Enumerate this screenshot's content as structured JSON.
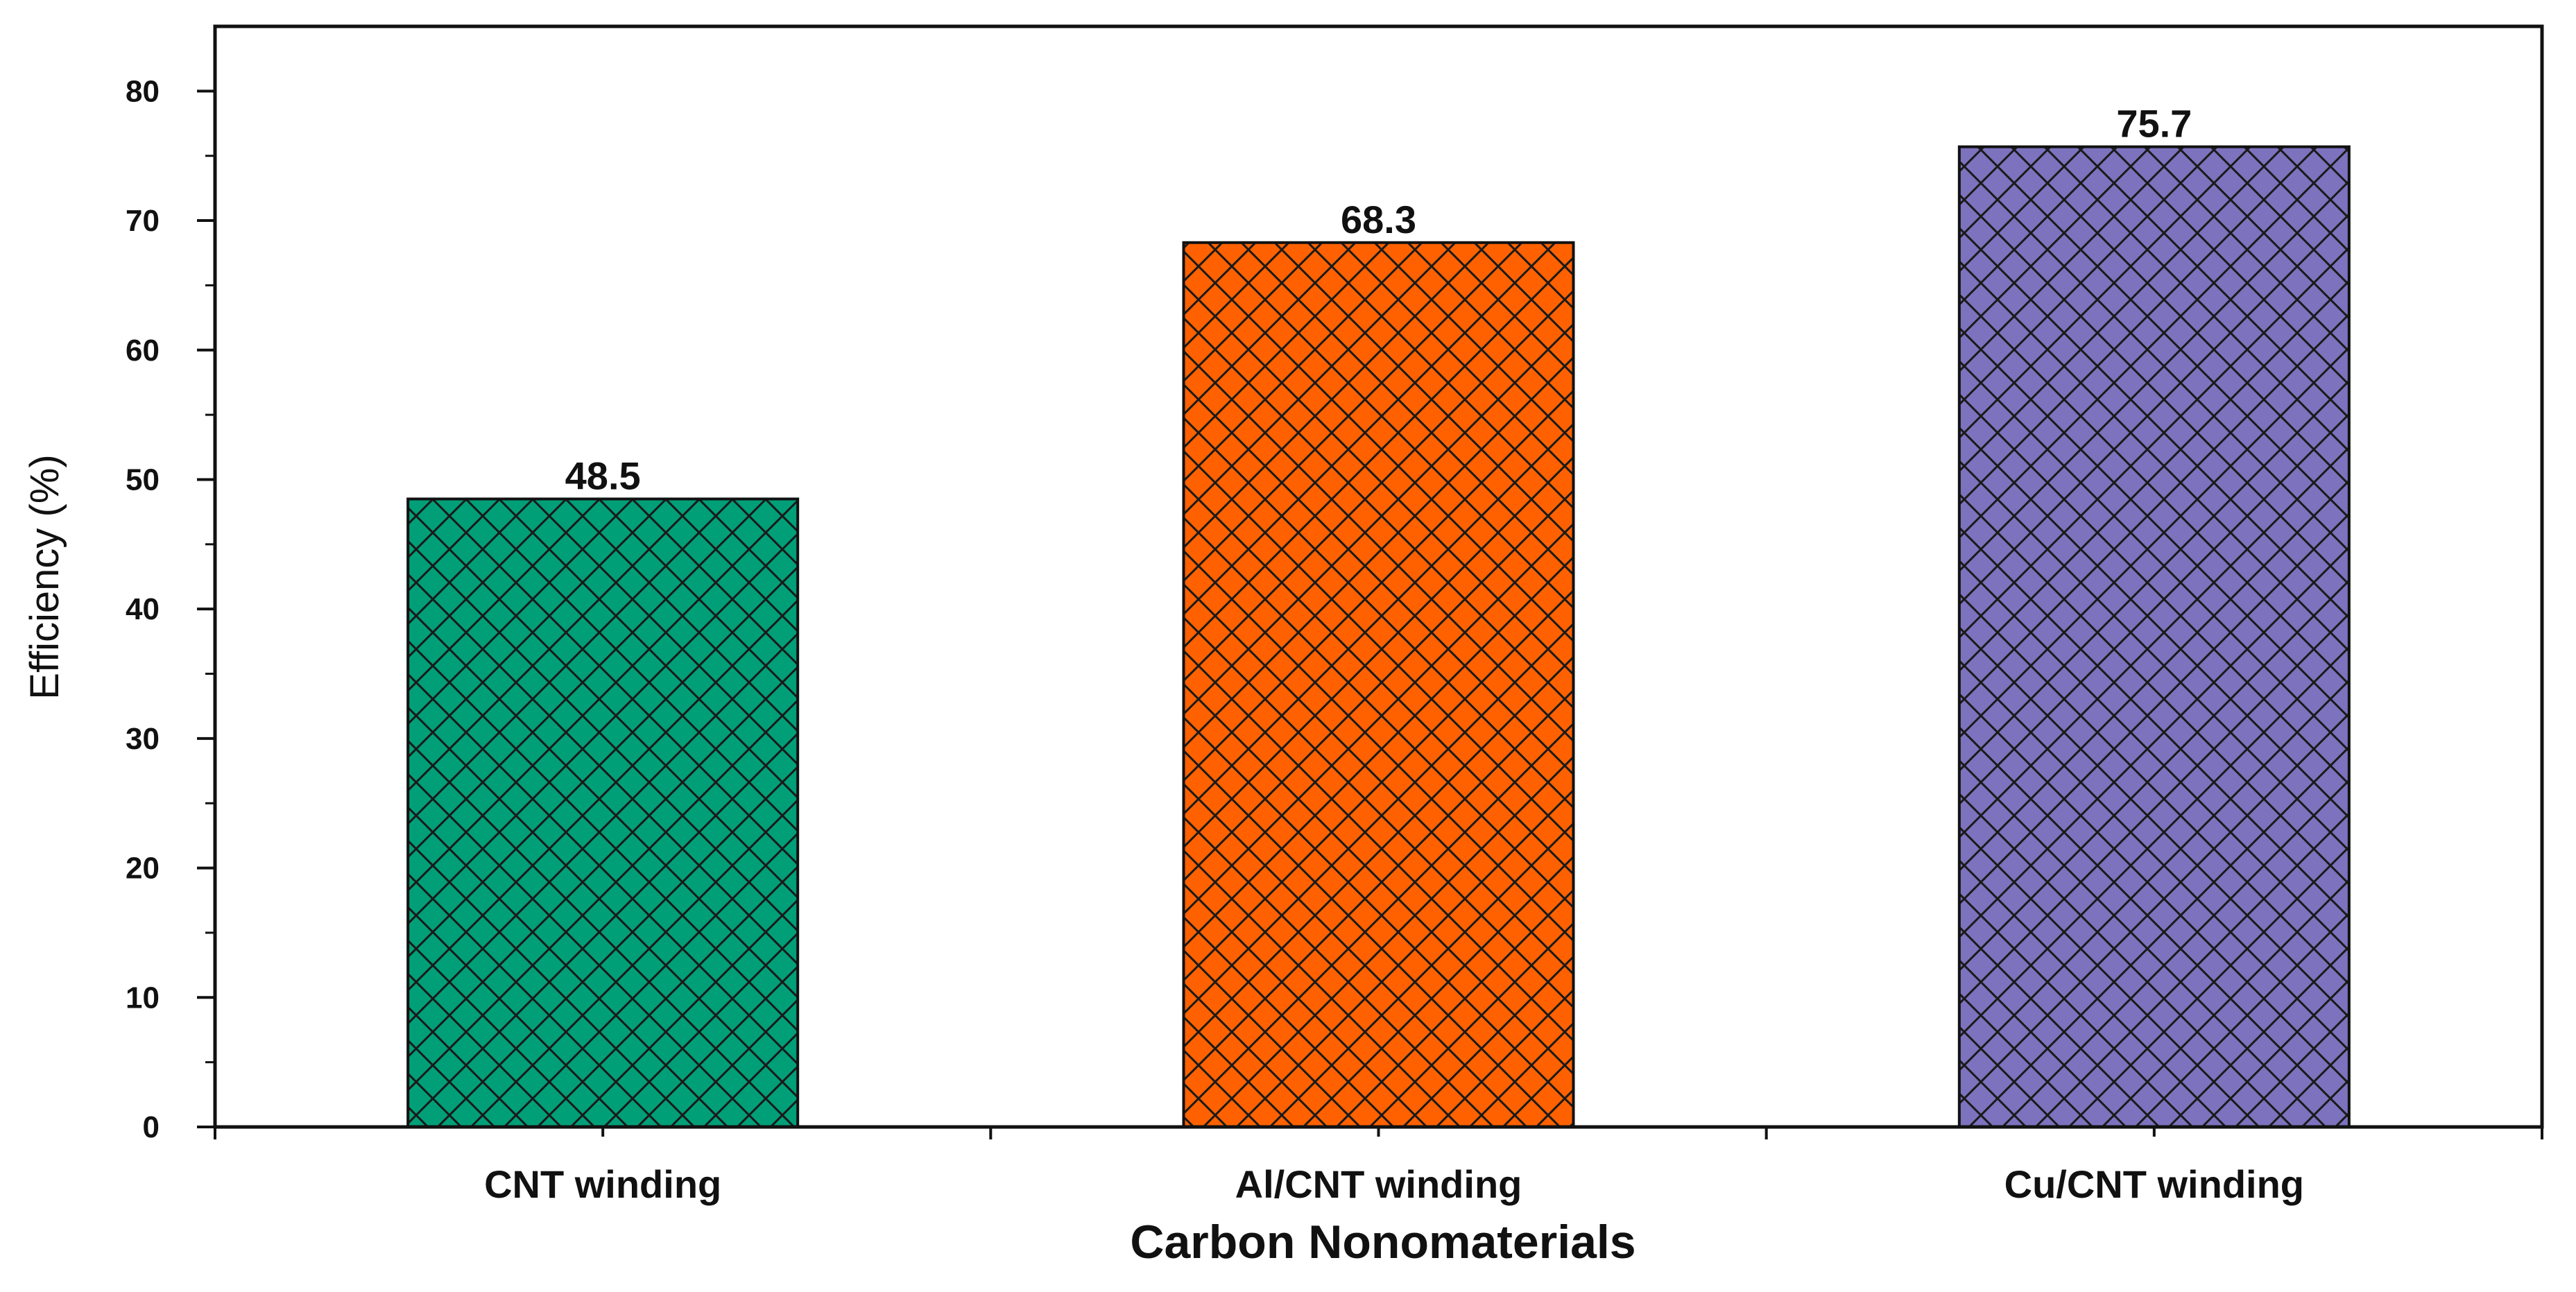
{
  "chart_data": {
    "type": "bar",
    "title": "",
    "xlabel": "Carbon Nonomaterials",
    "ylabel": "Efficiency (%)",
    "categories": [
      "CNT winding",
      "Al/CNT winding",
      "Cu/CNT winding"
    ],
    "values": [
      48.5,
      68.3,
      75.7
    ],
    "value_labels": [
      "48.5",
      "68.3",
      "75.7"
    ],
    "colors": [
      "#019f78",
      "#ff6100",
      "#7c72be"
    ],
    "hatch": "crosshatch",
    "ylim": [
      0,
      85
    ],
    "yticks": [
      0,
      10,
      20,
      30,
      40,
      50,
      60,
      70,
      80
    ],
    "ytick_labels": [
      "0",
      "10",
      "20",
      "30",
      "40",
      "50",
      "60",
      "70",
      "80"
    ],
    "grid": false,
    "legend": "none"
  }
}
